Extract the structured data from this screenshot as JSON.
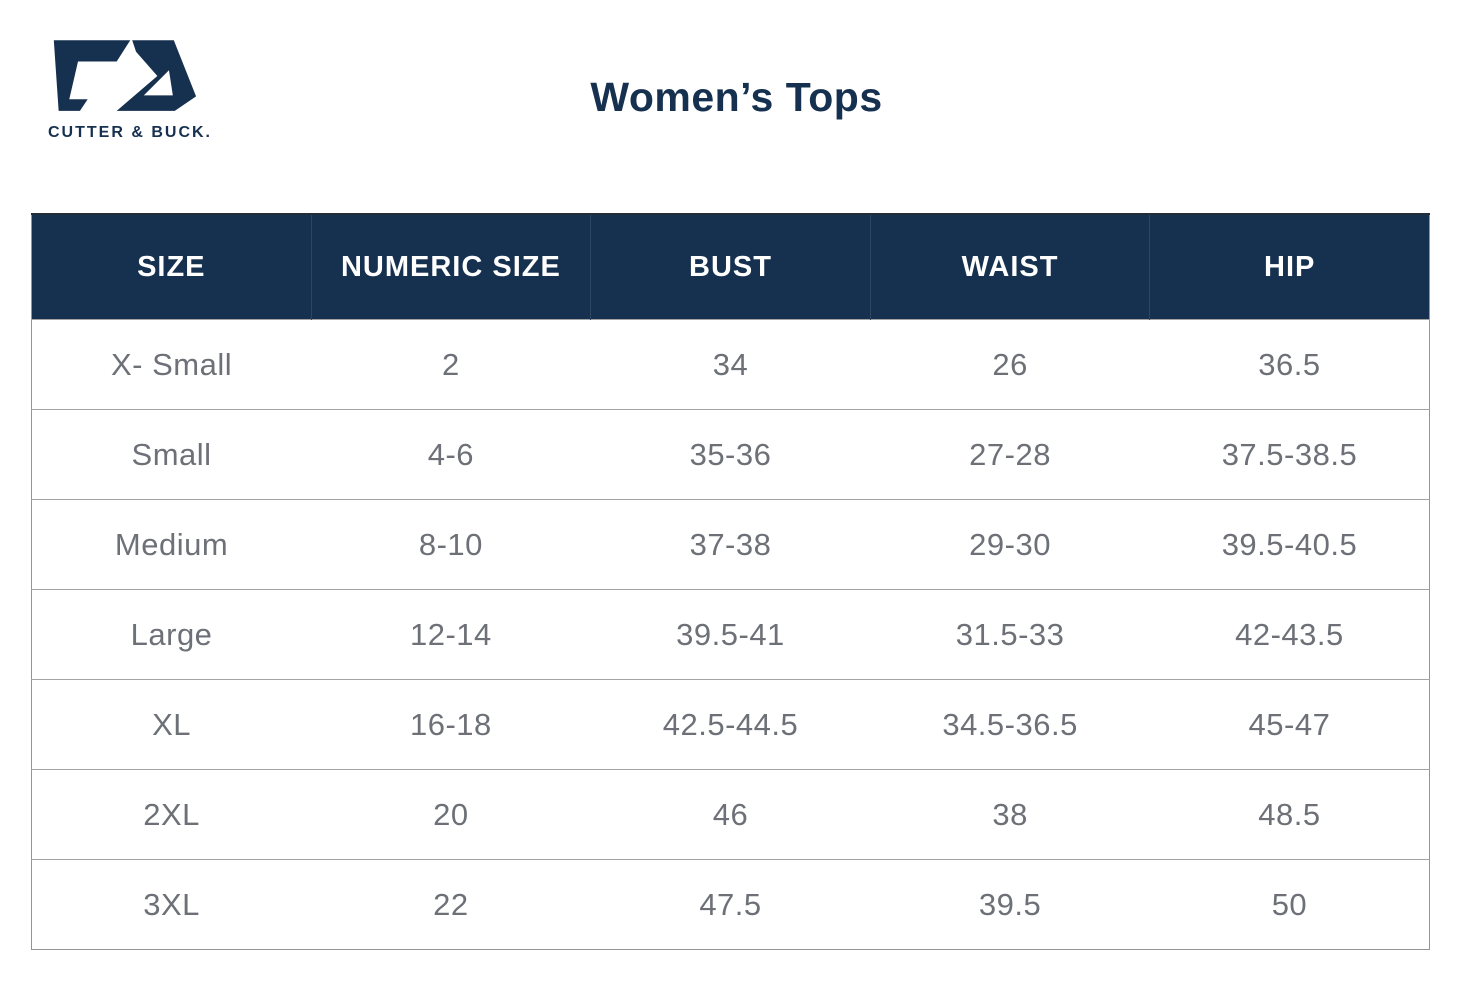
{
  "brand": {
    "wordmark": "CUTTER & BUCK."
  },
  "title": "Women’s Tops",
  "colors": {
    "navy": "#16304f",
    "header_text": "#ffffff",
    "body_text": "#6d7177",
    "row_border": "#a3a3a3",
    "table_border": "#949494",
    "background": "#ffffff"
  },
  "chart_data": {
    "type": "table",
    "title": "Women’s Tops",
    "columns": [
      "SIZE",
      "NUMERIC SIZE",
      "BUST",
      "WAIST",
      "HIP"
    ],
    "rows": [
      [
        "X- Small",
        "2",
        "34",
        "26",
        "36.5"
      ],
      [
        "Small",
        "4-6",
        "35-36",
        "27-28",
        "37.5-38.5"
      ],
      [
        "Medium",
        "8-10",
        "37-38",
        "29-30",
        "39.5-40.5"
      ],
      [
        "Large",
        "12-14",
        "39.5-41",
        "31.5-33",
        "42-43.5"
      ],
      [
        "XL",
        "16-18",
        "42.5-44.5",
        "34.5-36.5",
        "45-47"
      ],
      [
        "2XL",
        "20",
        "46",
        "38",
        "48.5"
      ],
      [
        "3XL",
        "22",
        "47.5",
        "39.5",
        "50"
      ]
    ],
    "layout": {
      "header_background": "#16304f",
      "grid": "horizontal-only",
      "column_count": 5,
      "columns_equal_width": true
    }
  }
}
